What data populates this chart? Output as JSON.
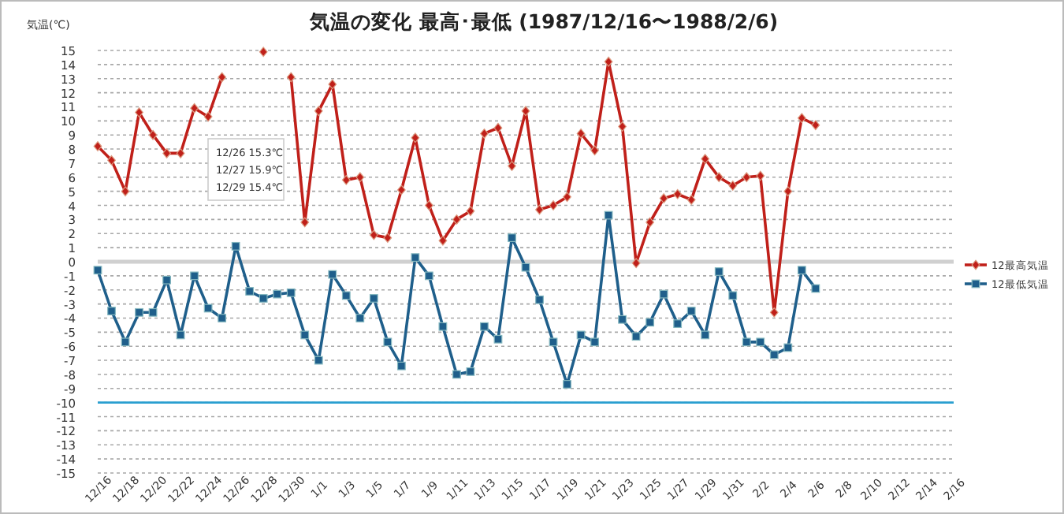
{
  "chart_data": {
    "type": "line",
    "title": "気温の変化  最高･最低  (1987/12/16〜1988/2/6)",
    "ylabel": "気温(℃)",
    "x": [
      "1987-12-16",
      "1987-12-17",
      "1987-12-18",
      "1987-12-19",
      "1987-12-20",
      "1987-12-21",
      "1987-12-22",
      "1987-12-23",
      "1987-12-24",
      "1987-12-25",
      "1987-12-26",
      "1987-12-27",
      "1987-12-28",
      "1987-12-29",
      "1987-12-30",
      "1987-12-31",
      "1988-01-01",
      "1988-01-02",
      "1988-01-03",
      "1988-01-04",
      "1988-01-05",
      "1988-01-06",
      "1988-01-07",
      "1988-01-08",
      "1988-01-09",
      "1988-01-10",
      "1988-01-11",
      "1988-01-12",
      "1988-01-13",
      "1988-01-14",
      "1988-01-15",
      "1988-01-16",
      "1988-01-17",
      "1988-01-18",
      "1988-01-19",
      "1988-01-20",
      "1988-01-21",
      "1988-01-22",
      "1988-01-23",
      "1988-01-24",
      "1988-01-25",
      "1988-01-26",
      "1988-01-27",
      "1988-01-28",
      "1988-01-29",
      "1988-01-30",
      "1988-01-31",
      "1988-02-01",
      "1988-02-02",
      "1988-02-03",
      "1988-02-04",
      "1988-02-05",
      "1988-02-06"
    ],
    "series": [
      {
        "name": "12最高気温",
        "color": "#c0201a",
        "marker": "diamond",
        "values": [
          8.2,
          7.2,
          5.0,
          10.6,
          9.0,
          7.7,
          7.7,
          10.9,
          10.3,
          13.1,
          null,
          null,
          14.9,
          null,
          13.1,
          2.8,
          10.7,
          12.6,
          5.8,
          6.0,
          1.9,
          1.7,
          5.1,
          8.8,
          4.0,
          1.5,
          3.0,
          3.6,
          9.1,
          9.5,
          6.8,
          10.7,
          3.7,
          4.0,
          4.6,
          9.1,
          7.9,
          14.2,
          9.6,
          -0.1,
          2.8,
          4.5,
          4.8,
          4.4,
          7.3,
          6.0,
          5.4,
          6.0,
          6.1,
          -3.6,
          5.0,
          10.2,
          9.7
        ]
      },
      {
        "name": "12最低気温",
        "color": "#1f5f8b",
        "marker": "square",
        "values": [
          -0.6,
          -3.5,
          -5.7,
          -3.6,
          -3.6,
          -1.3,
          -5.2,
          -1.0,
          -3.3,
          -4.0,
          1.1,
          -2.1,
          -2.6,
          -2.3,
          -2.2,
          -5.2,
          -7.0,
          -0.9,
          -2.4,
          -4.0,
          -2.6,
          -5.7,
          -7.4,
          0.3,
          -1.0,
          -4.6,
          -8.0,
          -7.8,
          -4.6,
          -5.5,
          1.7,
          -0.4,
          -2.7,
          -5.7,
          -8.7,
          -5.2,
          -5.7,
          3.3,
          -4.1,
          -5.3,
          -4.3,
          -2.3,
          -4.4,
          -3.5,
          -5.2,
          -0.7,
          -2.4,
          -5.7,
          -5.7,
          -6.6,
          -6.1,
          -0.6,
          -1.9
        ]
      }
    ],
    "xlim": [
      "1987-12-16",
      "1988-02-16"
    ],
    "xticks": [
      {
        "value": "1987-12-16",
        "label": "12/16"
      },
      {
        "value": "1987-12-18",
        "label": "12/18"
      },
      {
        "value": "1987-12-20",
        "label": "12/20"
      },
      {
        "value": "1987-12-22",
        "label": "12/22"
      },
      {
        "value": "1987-12-24",
        "label": "12/24"
      },
      {
        "value": "1987-12-26",
        "label": "12/26"
      },
      {
        "value": "1987-12-28",
        "label": "12/28"
      },
      {
        "value": "1987-12-30",
        "label": "12/30"
      },
      {
        "value": "1988-01-01",
        "label": "1/1"
      },
      {
        "value": "1988-01-03",
        "label": "1/3"
      },
      {
        "value": "1988-01-05",
        "label": "1/5"
      },
      {
        "value": "1988-01-07",
        "label": "1/7"
      },
      {
        "value": "1988-01-09",
        "label": "1/9"
      },
      {
        "value": "1988-01-11",
        "label": "1/11"
      },
      {
        "value": "1988-01-13",
        "label": "1/13"
      },
      {
        "value": "1988-01-15",
        "label": "1/15"
      },
      {
        "value": "1988-01-17",
        "label": "1/17"
      },
      {
        "value": "1988-01-19",
        "label": "1/19"
      },
      {
        "value": "1988-01-21",
        "label": "1/21"
      },
      {
        "value": "1988-01-23",
        "label": "1/23"
      },
      {
        "value": "1988-01-25",
        "label": "1/25"
      },
      {
        "value": "1988-01-27",
        "label": "1/27"
      },
      {
        "value": "1988-01-29",
        "label": "1/29"
      },
      {
        "value": "1988-01-31",
        "label": "1/31"
      },
      {
        "value": "1988-02-02",
        "label": "2/2"
      },
      {
        "value": "1988-02-04",
        "label": "2/4"
      },
      {
        "value": "1988-02-06",
        "label": "2/6"
      },
      {
        "value": "1988-02-08",
        "label": "2/8"
      },
      {
        "value": "1988-02-10",
        "label": "2/10"
      },
      {
        "value": "1988-02-12",
        "label": "2/12"
      },
      {
        "value": "1988-02-14",
        "label": "2/14"
      },
      {
        "value": "1988-02-16",
        "label": "2/16"
      }
    ],
    "ylim": [
      -15,
      15
    ],
    "yticks": [
      -15,
      -14,
      -13,
      -12,
      -11,
      -10,
      -9,
      -8,
      -7,
      -6,
      -5,
      -4,
      -3,
      -2,
      -1,
      0,
      1,
      2,
      3,
      4,
      5,
      6,
      7,
      8,
      9,
      10,
      11,
      12,
      13,
      14,
      15
    ],
    "grid": "y",
    "legend": "right",
    "ref_lines": [
      {
        "axis": "y",
        "value": -10,
        "color": "#2a9fd0"
      }
    ],
    "annotations": [
      "12/26 15.3℃",
      "12/27 15.9℃",
      "12/29 15.4℃"
    ]
  }
}
